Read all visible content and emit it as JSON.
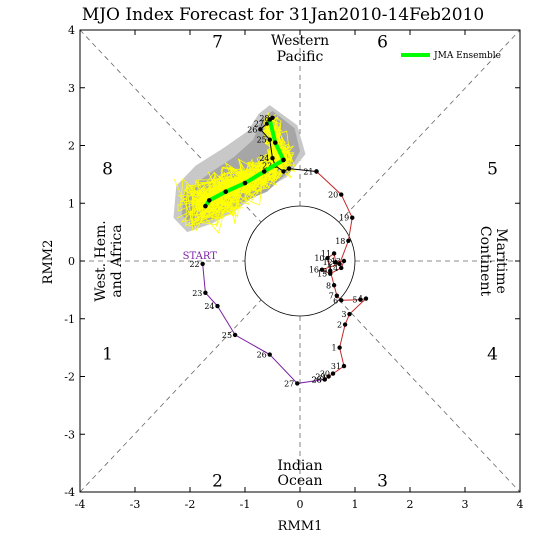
{
  "chart_data": {
    "type": "line",
    "title": "MJO Index Forecast for 31Jan2010-14Feb2010",
    "xlabel": "RMM1",
    "ylabel": "RMM2",
    "xlim": [
      -4,
      4
    ],
    "ylim": [
      -4,
      4
    ],
    "x_ticks": [
      -4,
      -3,
      -2,
      -1,
      0,
      1,
      2,
      3,
      4
    ],
    "y_ticks": [
      -4,
      -3,
      -2,
      -1,
      0,
      1,
      2,
      3,
      4
    ],
    "phases": [
      {
        "label": "1",
        "x": -3.5,
        "y": -1.6
      },
      {
        "label": "2",
        "x": -1.5,
        "y": -3.8
      },
      {
        "label": "3",
        "x": 1.5,
        "y": -3.8
      },
      {
        "label": "4",
        "x": 3.5,
        "y": -1.6
      },
      {
        "label": "5",
        "x": 3.5,
        "y": 1.6
      },
      {
        "label": "6",
        "x": 1.5,
        "y": 3.8
      },
      {
        "label": "7",
        "x": -1.5,
        "y": 3.8
      },
      {
        "label": "8",
        "x": -3.5,
        "y": 1.6
      }
    ],
    "regions": [
      {
        "name": "western_pacific",
        "lines": [
          "Western",
          "Pacific"
        ]
      },
      {
        "name": "indian_ocean",
        "lines": [
          "Indian",
          "Ocean"
        ]
      },
      {
        "name": "west_hem_africa",
        "lines": [
          "West. Hem.",
          "and Africa"
        ]
      },
      {
        "name": "maritime_continent",
        "lines": [
          "Maritime",
          "Continent"
        ]
      }
    ],
    "legend": {
      "label": "JMA Ensemble",
      "color": "#00ff00",
      "position": "top-right"
    },
    "colors": {
      "purple": "#7b1fa2",
      "red": "#c62828",
      "ensemble": "#ffff00",
      "spread": "#a6a6a6",
      "mean": "#00ff00",
      "guides": "#666666"
    },
    "start_label": "START",
    "series": [
      {
        "color": "purple",
        "points": [
          {
            "x": -1.77,
            "y": -0.05,
            "label": "22"
          },
          {
            "x": -1.72,
            "y": -0.55,
            "label": "23"
          },
          {
            "x": -1.5,
            "y": -0.78,
            "label": "24"
          },
          {
            "x": -1.18,
            "y": -1.28,
            "label": "25"
          },
          {
            "x": -0.55,
            "y": -1.62,
            "label": "26"
          },
          {
            "x": -0.05,
            "y": -2.12,
            "label": "27"
          },
          {
            "x": 0.45,
            "y": -2.05,
            "label": "28"
          }
        ]
      },
      {
        "color": "red",
        "points": [
          {
            "x": 0.45,
            "y": -2.05,
            "label": "28"
          },
          {
            "x": 0.52,
            "y": -2.0,
            "label": "29"
          },
          {
            "x": 0.6,
            "y": -1.95,
            "label": "30"
          },
          {
            "x": 0.8,
            "y": -1.82,
            "label": "31"
          },
          {
            "x": 0.72,
            "y": -1.5,
            "label": "1"
          },
          {
            "x": 0.82,
            "y": -1.1,
            "label": "2"
          },
          {
            "x": 0.9,
            "y": -0.92,
            "label": "3"
          },
          {
            "x": 1.2,
            "y": -0.65,
            "label": "4"
          },
          {
            "x": 1.1,
            "y": -0.67,
            "label": "5"
          },
          {
            "x": 0.75,
            "y": -0.68,
            "label": "6"
          },
          {
            "x": 0.67,
            "y": -0.6,
            "label": "7"
          },
          {
            "x": 0.62,
            "y": -0.42,
            "label": "8"
          },
          {
            "x": 0.55,
            "y": -0.17,
            "label": "9"
          },
          {
            "x": 0.5,
            "y": 0.05,
            "label": "10"
          },
          {
            "x": 0.62,
            "y": 0.13,
            "label": "11"
          },
          {
            "x": 0.65,
            "y": -0.02,
            "label": "12"
          },
          {
            "x": 0.8,
            "y": 0.0,
            "label": "13"
          },
          {
            "x": 0.75,
            "y": -0.12,
            "label": "14"
          },
          {
            "x": 0.55,
            "y": -0.22,
            "label": "15"
          },
          {
            "x": 0.4,
            "y": -0.15,
            "label": "16"
          },
          {
            "x": 0.72,
            "y": -0.05,
            "label": "17"
          },
          {
            "x": 0.88,
            "y": 0.35,
            "label": "18"
          },
          {
            "x": 0.95,
            "y": 0.75,
            "label": "19"
          },
          {
            "x": 0.75,
            "y": 1.15,
            "label": "20"
          },
          {
            "x": 0.3,
            "y": 1.55,
            "label": "21"
          }
        ]
      },
      {
        "color": "black",
        "points": [
          {
            "x": 0.3,
            "y": 1.55,
            "label": ""
          },
          {
            "x": -0.2,
            "y": 1.6,
            "label": ""
          },
          {
            "x": -0.3,
            "y": 1.55,
            "label": ""
          },
          {
            "x": -0.45,
            "y": 1.65,
            "label": "23"
          },
          {
            "x": -0.5,
            "y": 1.78,
            "label": "24"
          },
          {
            "x": -0.55,
            "y": 2.1,
            "label": "25"
          },
          {
            "x": -0.72,
            "y": 2.28,
            "label": "26"
          },
          {
            "x": -0.6,
            "y": 2.38,
            "label": "27"
          },
          {
            "x": -0.5,
            "y": 2.48,
            "label": "28"
          }
        ]
      }
    ],
    "ensemble_mean": [
      {
        "x": -0.55,
        "y": 2.45
      },
      {
        "x": -0.45,
        "y": 2.05
      },
      {
        "x": -0.3,
        "y": 1.75
      },
      {
        "x": -0.65,
        "y": 1.55
      },
      {
        "x": -1.0,
        "y": 1.35
      },
      {
        "x": -1.35,
        "y": 1.2
      },
      {
        "x": -1.65,
        "y": 1.05
      },
      {
        "x": -1.72,
        "y": 0.95
      }
    ]
  }
}
